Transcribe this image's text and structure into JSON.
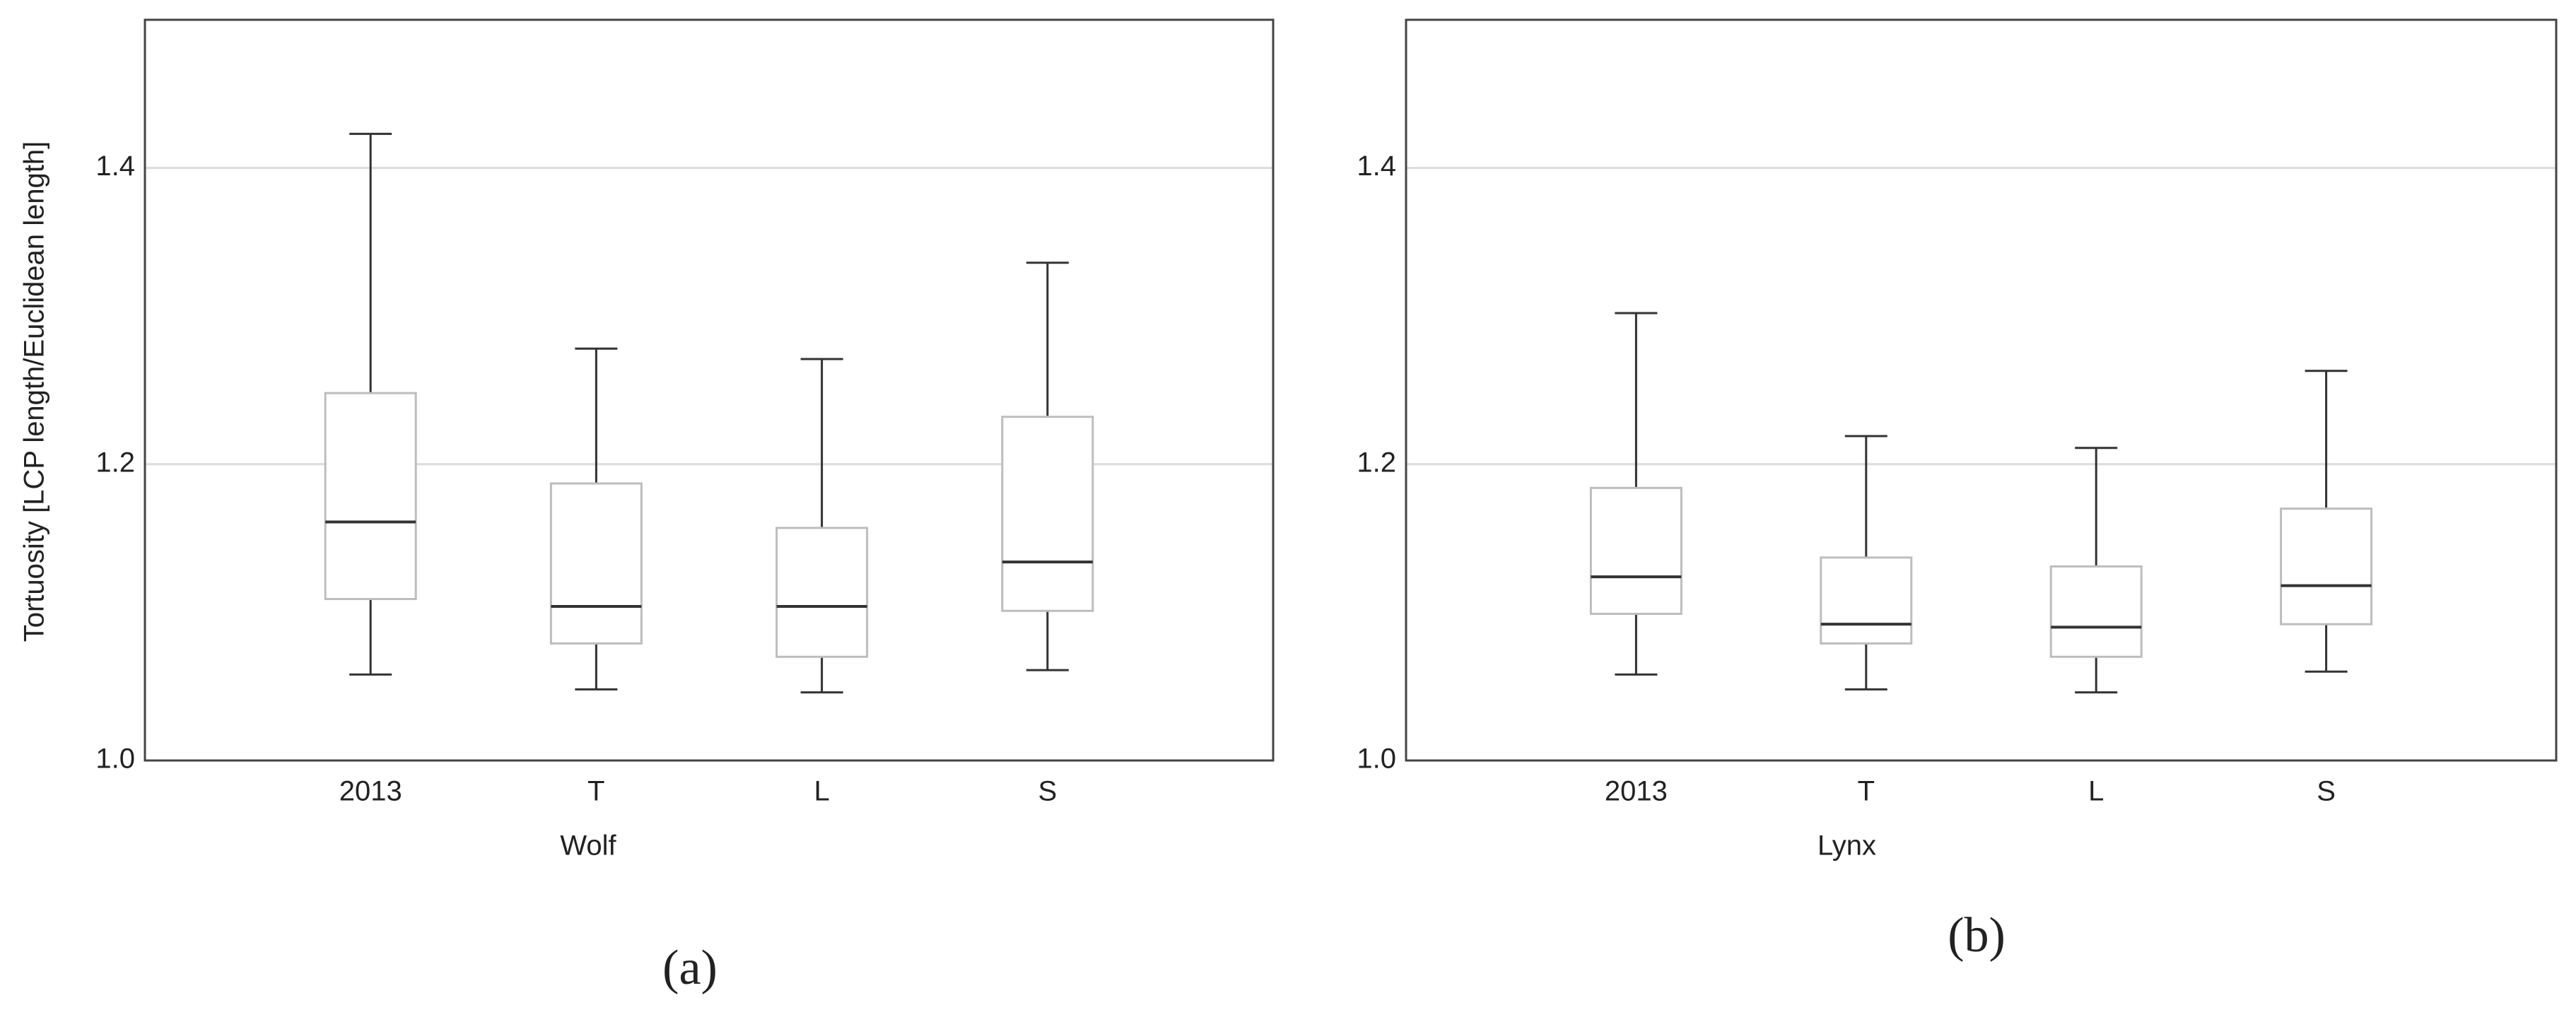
{
  "chart_data": [
    {
      "type": "box",
      "panel_label": "(a)",
      "x_label": "Wolf",
      "y_label": "Tortuosity [LCP length/Euclidean length]",
      "categories": [
        "2013",
        "T",
        "L",
        "S"
      ],
      "min": [
        1.058,
        1.048,
        1.046,
        1.061
      ],
      "q1": [
        1.109,
        1.079,
        1.07,
        1.101
      ],
      "median": [
        1.161,
        1.104,
        1.104,
        1.134
      ],
      "q3": [
        1.248,
        1.187,
        1.157,
        1.232
      ],
      "max": [
        1.423,
        1.278,
        1.271,
        1.336
      ],
      "ylim": [
        1.0,
        1.5
      ],
      "yticks": [
        {
          "value": 1.0,
          "label": "1.0"
        },
        1.2,
        1.4
      ],
      "grid": true
    },
    {
      "type": "box",
      "panel_label": "(b)",
      "x_label": "Lynx",
      "categories": [
        "2013",
        "T",
        "L",
        "S"
      ],
      "min": [
        1.058,
        1.048,
        1.046,
        1.06
      ],
      "q1": [
        1.099,
        1.079,
        1.07,
        1.092
      ],
      "median": [
        1.124,
        1.092,
        1.09,
        1.118
      ],
      "q3": [
        1.184,
        1.137,
        1.131,
        1.17
      ],
      "max": [
        1.302,
        1.219,
        1.211,
        1.263
      ],
      "ylim": [
        1.0,
        1.5
      ],
      "yticks": [
        {
          "value": 1.0,
          "label": "1.0"
        },
        1.2,
        1.4
      ],
      "grid": true
    }
  ]
}
